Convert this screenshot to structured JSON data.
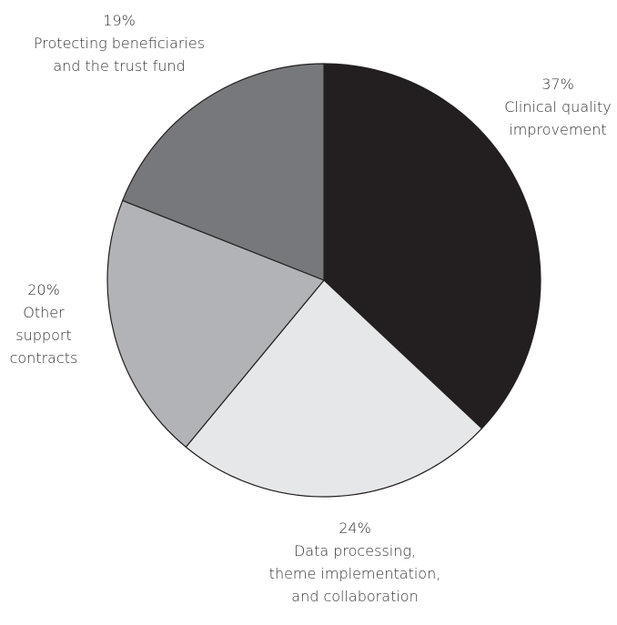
{
  "chart_data": {
    "type": "pie",
    "start_angle_deg": 0,
    "direction": "clockwise",
    "slices": [
      {
        "percent_label": "37%",
        "label_lines": [
          "Clinical quality",
          "improvement"
        ],
        "value": 37,
        "color": "#231f20"
      },
      {
        "percent_label": "24%",
        "label_lines": [
          "Data processing,",
          "theme implementation,",
          "and collaboration"
        ],
        "value": 24,
        "color": "#e6e7e8"
      },
      {
        "percent_label": "20%",
        "label_lines": [
          "Other",
          "support",
          "contracts"
        ],
        "value": 20,
        "color": "#b1b3b6"
      },
      {
        "percent_label": "19%",
        "label_lines": [
          "Protecting beneficiaries",
          "and the trust fund"
        ],
        "value": 19,
        "color": "#77787b"
      }
    ]
  }
}
